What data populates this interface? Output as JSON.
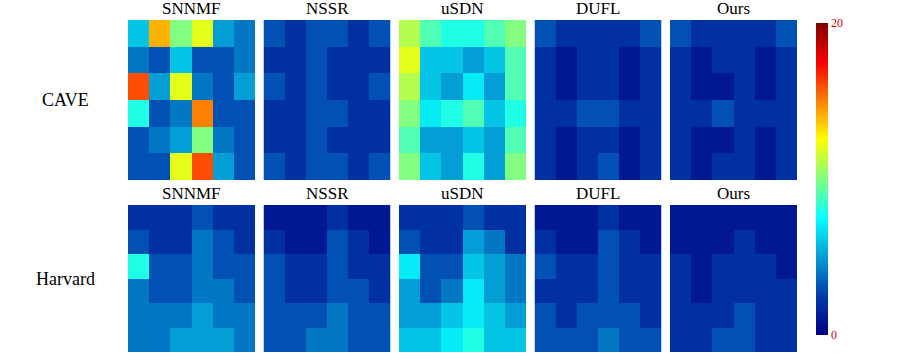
{
  "colorbar": {
    "range": [
      0,
      20
    ],
    "ticks": [
      0,
      20
    ],
    "color": "Jet"
  },
  "chart_data": [
    {
      "type": "heatmap",
      "row_label": "CAVE",
      "title": "SNNMF",
      "tick_labels": false,
      "cells": [
        [
          6,
          14,
          10,
          12,
          5,
          4
        ],
        [
          4,
          3,
          6,
          3,
          3,
          4
        ],
        [
          16,
          5,
          12,
          4,
          3,
          5
        ],
        [
          8,
          3,
          4,
          15,
          3,
          3
        ],
        [
          3,
          4,
          5,
          10,
          4,
          3
        ],
        [
          3,
          3,
          12,
          16,
          5,
          3
        ]
      ]
    },
    {
      "type": "heatmap",
      "row_label": "CAVE",
      "title": "NSSR",
      "tick_labels": false,
      "cells": [
        [
          3,
          2,
          3,
          3,
          2,
          3
        ],
        [
          2,
          2,
          3,
          2,
          2,
          2
        ],
        [
          3,
          2,
          3,
          2,
          2,
          3
        ],
        [
          2,
          2,
          3,
          3,
          2,
          2
        ],
        [
          2,
          2,
          3,
          2,
          2,
          2
        ],
        [
          3,
          2,
          3,
          3,
          2,
          3
        ]
      ]
    },
    {
      "type": "heatmap",
      "row_label": "CAVE",
      "title": "uSDN",
      "tick_labels": false,
      "cells": [
        [
          11,
          9,
          8,
          8,
          9,
          10
        ],
        [
          12,
          6,
          6,
          5,
          6,
          9
        ],
        [
          11,
          6,
          5,
          7,
          5,
          9
        ],
        [
          10,
          7,
          8,
          9,
          6,
          8
        ],
        [
          9,
          5,
          5,
          6,
          5,
          9
        ],
        [
          10,
          6,
          5,
          8,
          5,
          10
        ]
      ]
    },
    {
      "type": "heatmap",
      "row_label": "CAVE",
      "title": "DUFL",
      "tick_labels": false,
      "cells": [
        [
          3,
          2,
          2,
          2,
          2,
          3
        ],
        [
          2,
          1,
          2,
          2,
          1,
          2
        ],
        [
          2,
          1,
          2,
          2,
          1,
          2
        ],
        [
          2,
          2,
          3,
          3,
          2,
          2
        ],
        [
          2,
          1,
          2,
          2,
          1,
          2
        ],
        [
          2,
          1,
          2,
          3,
          1,
          2
        ]
      ]
    },
    {
      "type": "heatmap",
      "row_label": "CAVE",
      "title": "Ours",
      "tick_labels": false,
      "cells": [
        [
          3,
          2,
          2,
          2,
          2,
          3
        ],
        [
          2,
          1,
          2,
          2,
          1,
          2
        ],
        [
          2,
          1,
          1,
          2,
          1,
          2
        ],
        [
          2,
          2,
          3,
          2,
          2,
          2
        ],
        [
          2,
          1,
          1,
          2,
          1,
          2
        ],
        [
          2,
          1,
          2,
          2,
          1,
          2
        ]
      ]
    },
    {
      "type": "heatmap",
      "row_label": "Harvard",
      "title": "SNNMF",
      "tick_labels": false,
      "cells": [
        [
          2,
          2,
          2,
          3,
          2,
          2
        ],
        [
          3,
          2,
          2,
          4,
          3,
          2
        ],
        [
          8,
          3,
          3,
          4,
          3,
          3
        ],
        [
          4,
          3,
          3,
          4,
          4,
          3
        ],
        [
          4,
          4,
          4,
          5,
          4,
          4
        ],
        [
          4,
          4,
          5,
          5,
          5,
          4
        ]
      ]
    },
    {
      "type": "heatmap",
      "row_label": "Harvard",
      "title": "NSSR",
      "tick_labels": false,
      "cells": [
        [
          1,
          1,
          1,
          2,
          1,
          1
        ],
        [
          2,
          1,
          1,
          3,
          2,
          1
        ],
        [
          3,
          2,
          2,
          3,
          2,
          2
        ],
        [
          3,
          2,
          2,
          3,
          3,
          2
        ],
        [
          3,
          3,
          3,
          4,
          3,
          3
        ],
        [
          3,
          3,
          4,
          4,
          3,
          3
        ]
      ]
    },
    {
      "type": "heatmap",
      "row_label": "Harvard",
      "title": "uSDN",
      "tick_labels": false,
      "cells": [
        [
          2,
          2,
          2,
          3,
          2,
          2
        ],
        [
          3,
          2,
          2,
          5,
          4,
          2
        ],
        [
          7,
          3,
          3,
          6,
          5,
          4
        ],
        [
          5,
          3,
          4,
          7,
          5,
          4
        ],
        [
          5,
          5,
          6,
          7,
          6,
          5
        ],
        [
          6,
          6,
          7,
          8,
          6,
          6
        ]
      ]
    },
    {
      "type": "heatmap",
      "row_label": "Harvard",
      "title": "DUFL",
      "tick_labels": false,
      "cells": [
        [
          1,
          1,
          1,
          2,
          1,
          1
        ],
        [
          2,
          1,
          1,
          3,
          2,
          1
        ],
        [
          3,
          2,
          2,
          3,
          2,
          2
        ],
        [
          2,
          2,
          2,
          3,
          2,
          2
        ],
        [
          3,
          2,
          3,
          3,
          3,
          2
        ],
        [
          3,
          3,
          3,
          4,
          3,
          3
        ]
      ]
    },
    {
      "type": "heatmap",
      "row_label": "Harvard",
      "title": "Ours",
      "tick_labels": false,
      "cells": [
        [
          1,
          1,
          1,
          1,
          1,
          1
        ],
        [
          1,
          1,
          1,
          2,
          1,
          1
        ],
        [
          2,
          1,
          2,
          2,
          2,
          1
        ],
        [
          2,
          1,
          2,
          2,
          2,
          2
        ],
        [
          2,
          2,
          2,
          3,
          2,
          2
        ],
        [
          2,
          2,
          3,
          3,
          2,
          2
        ]
      ]
    }
  ]
}
